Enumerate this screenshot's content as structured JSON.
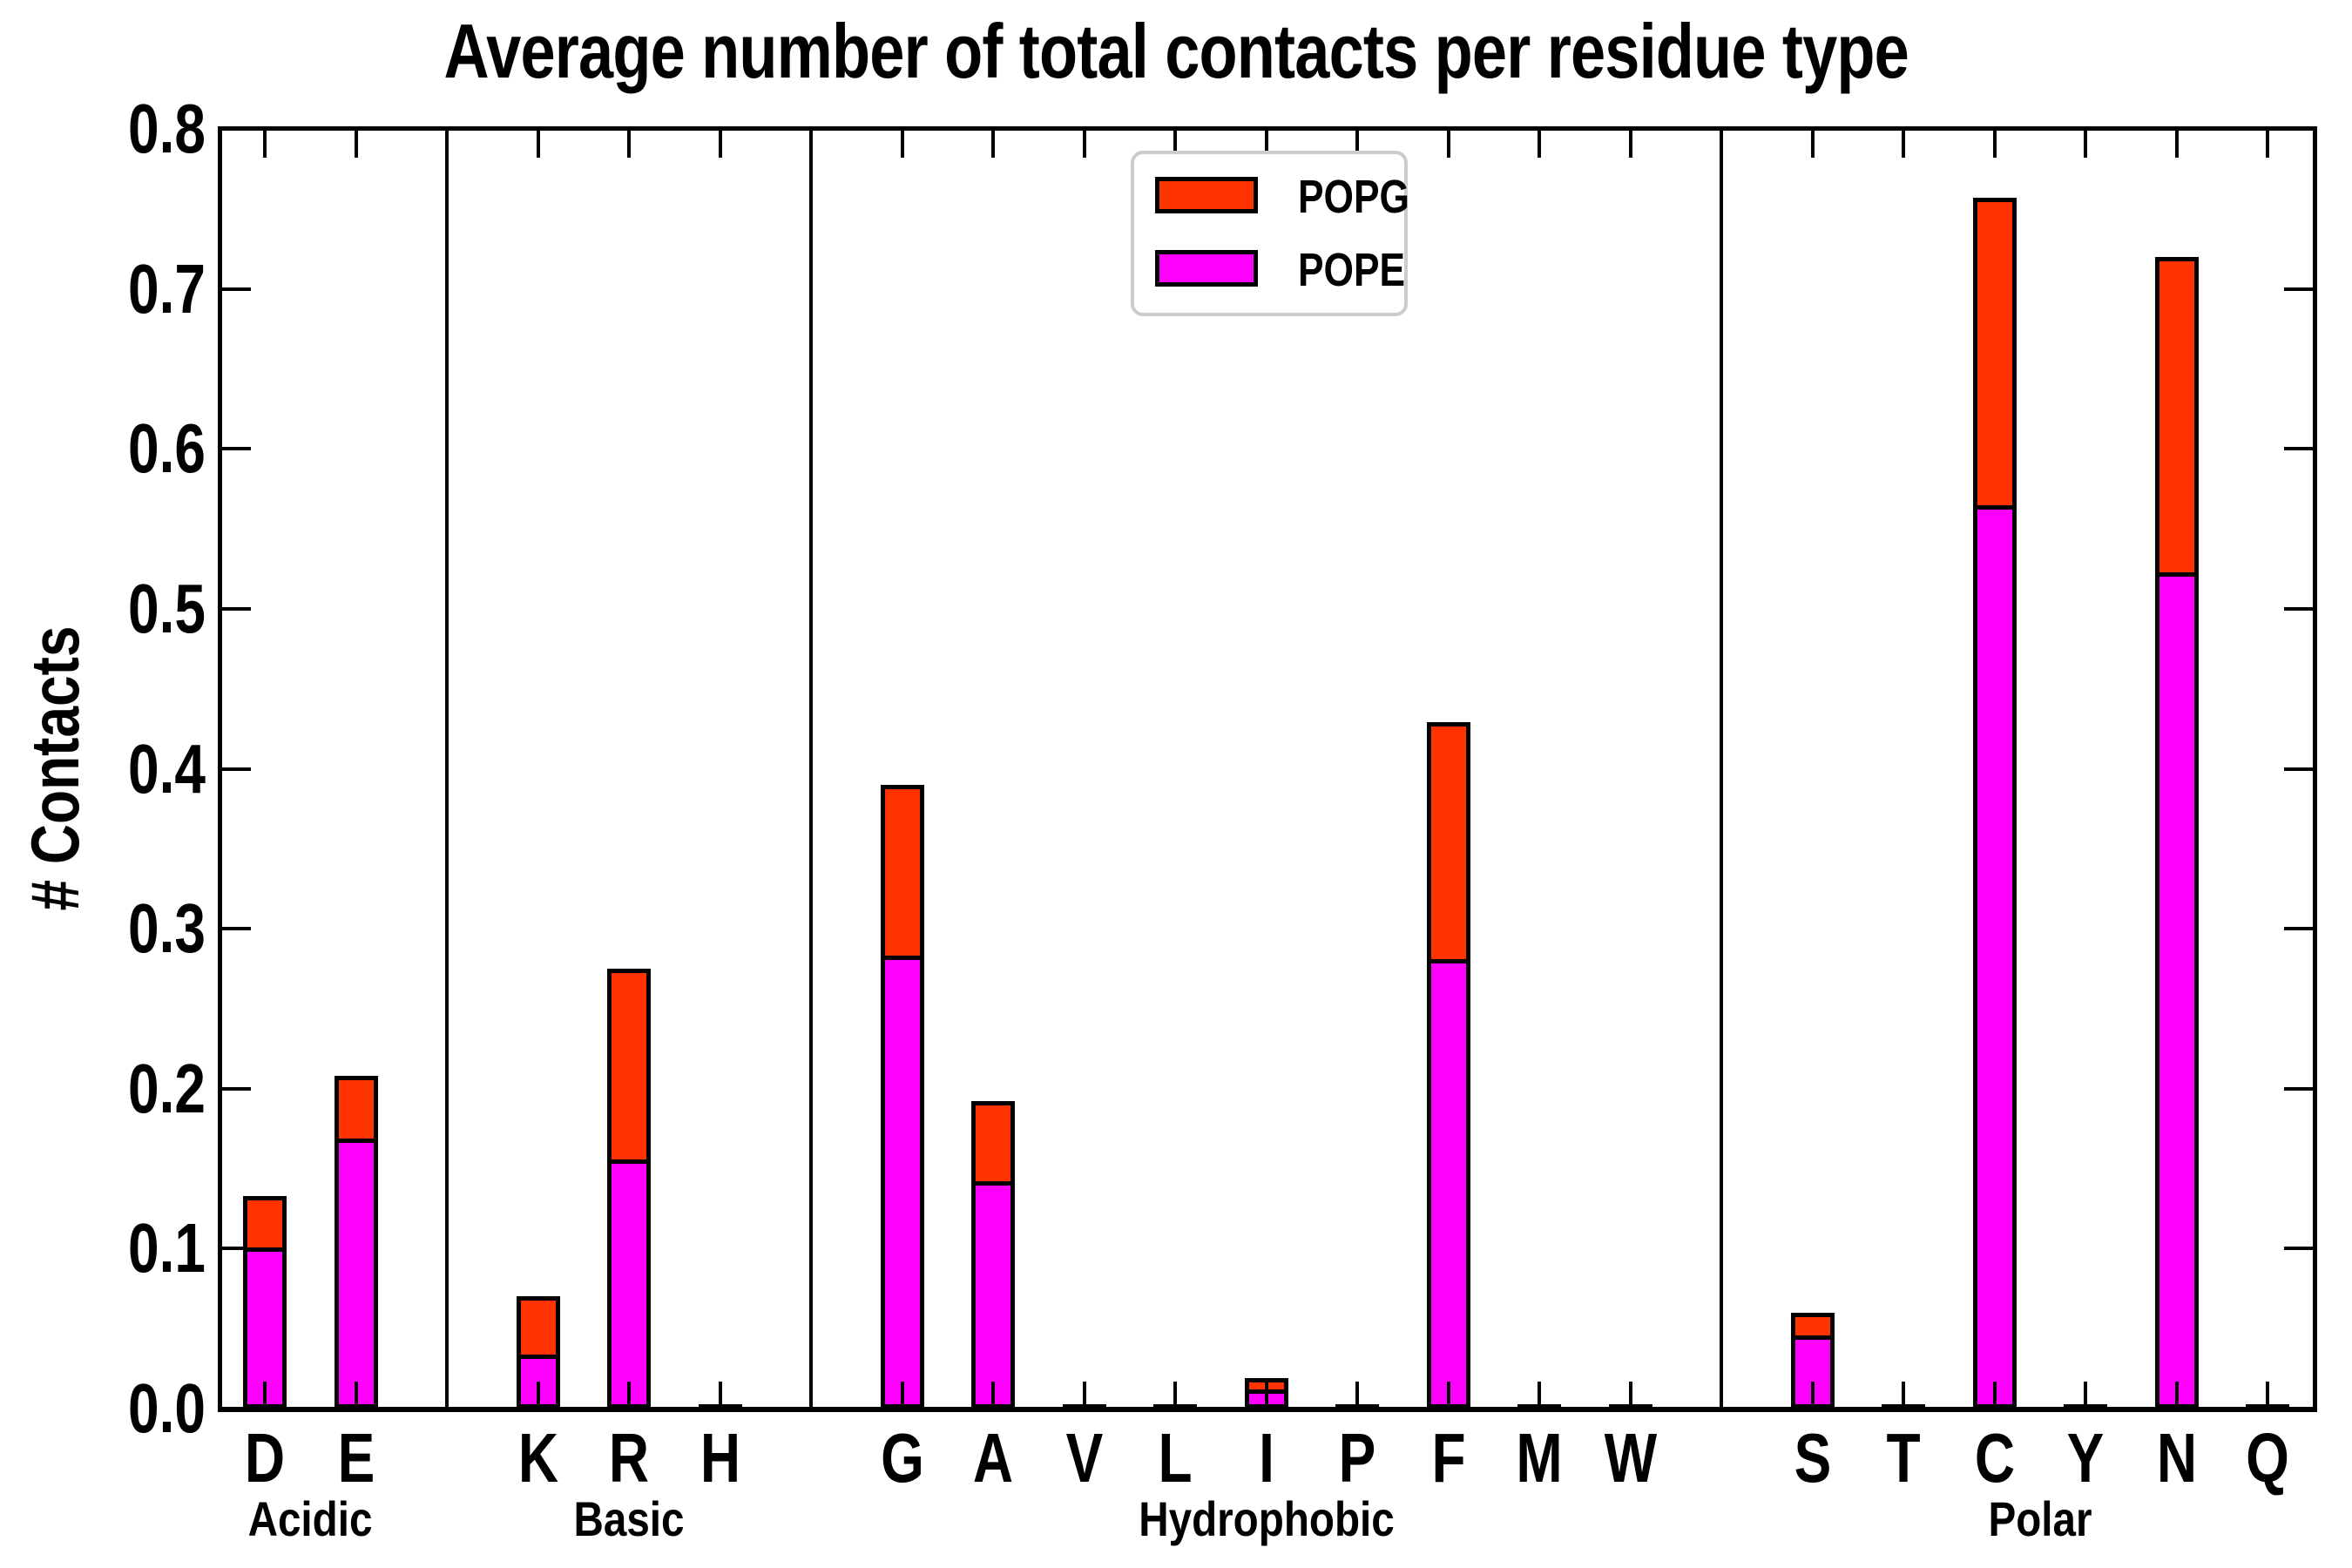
{
  "title": "Average number of total contacts per residue type",
  "axes": {
    "ylabel": "# Contacts",
    "ylim": [
      0.0,
      0.8
    ],
    "ytick_step": 0.1,
    "ytick_labels": [
      "0.0",
      "0.1",
      "0.2",
      "0.3",
      "0.4",
      "0.5",
      "0.6",
      "0.7",
      "0.8"
    ]
  },
  "legend": {
    "items": [
      {
        "label": "POPG",
        "color": "#ff3300"
      },
      {
        "label": "POPE",
        "color": "#ff00ff"
      }
    ]
  },
  "colors": {
    "popg": "#ff3300",
    "pope": "#ff00ff",
    "axis": "#000000",
    "legend_border": "#cccccc",
    "background": "#ffffff"
  },
  "chart_data": {
    "type": "bar",
    "stacked": true,
    "title": "Average number of total contacts per residue type",
    "xlabel": "",
    "ylabel": "# Contacts",
    "ylim": [
      0.0,
      0.8
    ],
    "grid": false,
    "legend_position": "upper center-left",
    "series_order_bottom_to_top": [
      "POPE",
      "POPG"
    ],
    "groups": [
      {
        "label": "Acidic",
        "residues": [
          {
            "residue": "D",
            "POPE": 0.101,
            "POPG": 0.032
          },
          {
            "residue": "E",
            "POPE": 0.169,
            "POPG": 0.039
          }
        ]
      },
      {
        "label": "Basic",
        "residues": [
          {
            "residue": "K",
            "POPE": 0.034,
            "POPG": 0.036
          },
          {
            "residue": "R",
            "POPE": 0.156,
            "POPG": 0.119
          },
          {
            "residue": "H",
            "POPE": 0.0,
            "POPG": 0.0
          }
        ]
      },
      {
        "label": "Hydrophobic",
        "residues": [
          {
            "residue": "G",
            "POPE": 0.283,
            "POPG": 0.107
          },
          {
            "residue": "A",
            "POPE": 0.142,
            "POPG": 0.05
          },
          {
            "residue": "V",
            "POPE": 0.0,
            "POPG": 0.0
          },
          {
            "residue": "L",
            "POPE": 0.0,
            "POPG": 0.0
          },
          {
            "residue": "I",
            "POPE": 0.012,
            "POPG": 0.007
          },
          {
            "residue": "P",
            "POPE": 0.0,
            "POPG": 0.0
          },
          {
            "residue": "F",
            "POPE": 0.281,
            "POPG": 0.148
          },
          {
            "residue": "M",
            "POPE": 0.0,
            "POPG": 0.0
          },
          {
            "residue": "W",
            "POPE": 0.0,
            "POPG": 0.0
          }
        ]
      },
      {
        "label": "Polar",
        "residues": [
          {
            "residue": "S",
            "POPE": 0.046,
            "POPG": 0.014
          },
          {
            "residue": "T",
            "POPE": 0.0,
            "POPG": 0.0
          },
          {
            "residue": "C",
            "POPE": 0.565,
            "POPG": 0.192
          },
          {
            "residue": "Y",
            "POPE": 0.0,
            "POPG": 0.0
          },
          {
            "residue": "N",
            "POPE": 0.523,
            "POPG": 0.197
          },
          {
            "residue": "Q",
            "POPE": 0.0,
            "POPG": 0.0
          }
        ]
      }
    ]
  }
}
